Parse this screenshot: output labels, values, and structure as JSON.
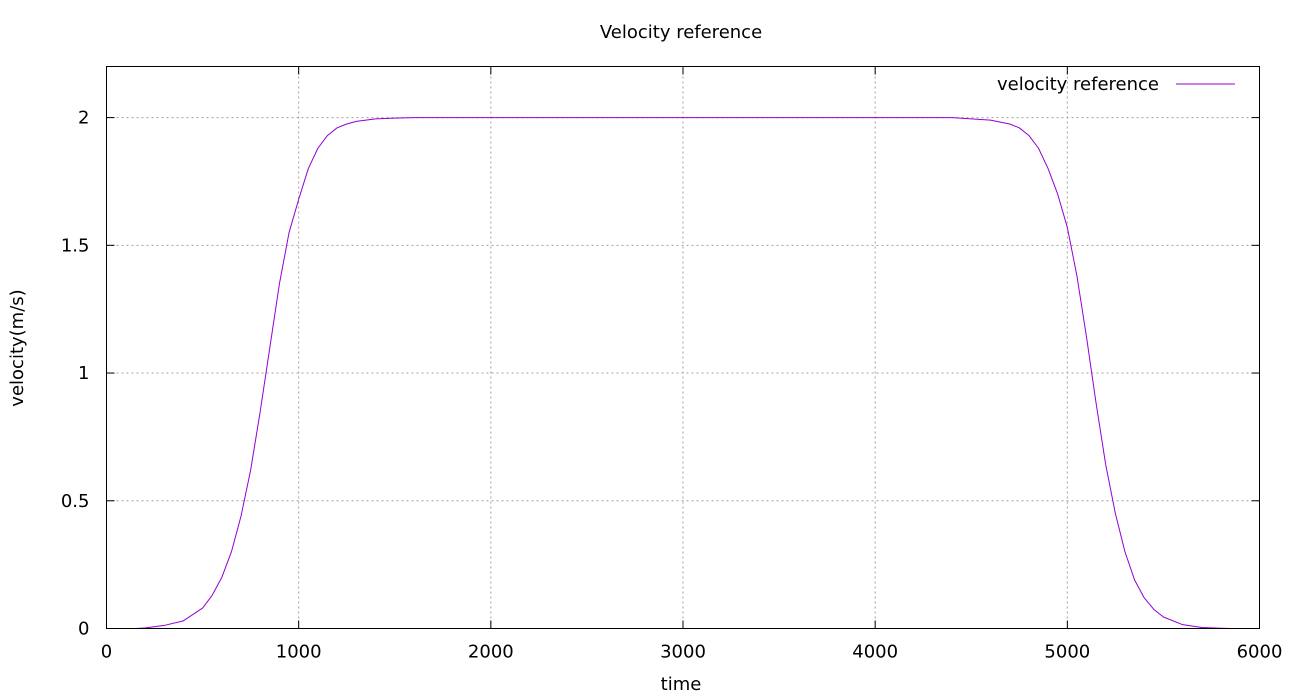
{
  "chart_data": {
    "type": "line",
    "title": "Velocity reference",
    "xlabel": "time",
    "ylabel": "velocity(m/s)",
    "xlim": [
      0,
      6000
    ],
    "ylim": [
      0,
      2.2
    ],
    "xticks": [
      0,
      1000,
      2000,
      3000,
      4000,
      5000,
      6000
    ],
    "yticks": [
      0,
      0.5,
      1,
      1.5,
      2
    ],
    "xtick_labels": [
      "0",
      "1000",
      "2000",
      "3000",
      "4000",
      "5000",
      "6000"
    ],
    "ytick_labels": [
      "0",
      "0.5",
      "1",
      "1.5",
      "2"
    ],
    "grid": true,
    "legend_position": "top-right",
    "series": [
      {
        "name": "velocity reference",
        "color": "#9400d3",
        "x": [
          150,
          200,
          300,
          400,
          500,
          550,
          600,
          650,
          700,
          750,
          800,
          850,
          900,
          950,
          1000,
          1050,
          1100,
          1150,
          1200,
          1250,
          1300,
          1400,
          1500,
          1600,
          2000,
          3000,
          4000,
          4400,
          4500,
          4600,
          4700,
          4750,
          4800,
          4850,
          4900,
          4950,
          5000,
          5050,
          5100,
          5150,
          5200,
          5250,
          5300,
          5350,
          5400,
          5450,
          5500,
          5600,
          5700,
          5800,
          5850
        ],
        "y": [
          0,
          0.002,
          0.012,
          0.03,
          0.08,
          0.13,
          0.2,
          0.3,
          0.44,
          0.62,
          0.85,
          1.1,
          1.35,
          1.55,
          1.68,
          1.8,
          1.88,
          1.93,
          1.96,
          1.975,
          1.985,
          1.995,
          1.998,
          2,
          2,
          2,
          2,
          2,
          1.995,
          1.99,
          1.975,
          1.96,
          1.93,
          1.88,
          1.8,
          1.7,
          1.57,
          1.38,
          1.14,
          0.88,
          0.64,
          0.45,
          0.3,
          0.19,
          0.12,
          0.075,
          0.045,
          0.015,
          0.004,
          0.001,
          0
        ]
      }
    ]
  }
}
